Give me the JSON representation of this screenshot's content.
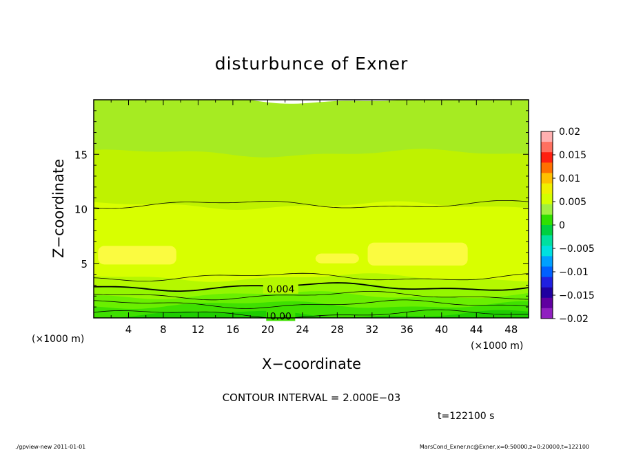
{
  "chart_data": {
    "type": "heatmap",
    "title": "disturbunce of Exner",
    "xlabel": "X−coordinate",
    "ylabel": "Z−coordinate",
    "x_unit_left": "(×1000 m)",
    "x_unit_right": "(×1000 m)",
    "xlim": [
      0,
      50
    ],
    "ylim": [
      0,
      20
    ],
    "x_ticks": [
      "4",
      "8",
      "12",
      "16",
      "20",
      "24",
      "28",
      "32",
      "36",
      "40",
      "44",
      "48"
    ],
    "x_tick_values": [
      4,
      8,
      12,
      16,
      20,
      24,
      28,
      32,
      36,
      40,
      44,
      48
    ],
    "y_ticks": [
      "5",
      "10",
      "15"
    ],
    "y_tick_values": [
      5,
      10,
      15
    ],
    "contour_labels": [
      "0.004",
      "0.00"
    ],
    "colorbar": {
      "ticks": [
        "0.02",
        "0.015",
        "0.01",
        "0.005",
        "0",
        "−0.005",
        "−0.01",
        "−0.015",
        "−0.02"
      ],
      "tick_values": [
        0.02,
        0.015,
        0.01,
        0.005,
        0,
        -0.005,
        -0.01,
        -0.015,
        -0.02
      ],
      "colors": [
        "#ffb0b0",
        "#ff7060",
        "#ff2010",
        "#ff7000",
        "#ffc000",
        "#f0f000",
        "#d4ff00",
        "#a0f040",
        "#30e000",
        "#00d040",
        "#00e0a0",
        "#00e0e0",
        "#00a0ff",
        "#0060ff",
        "#2020e0",
        "#2000a0",
        "#6000a0",
        "#9020c0"
      ]
    },
    "levels": [
      {
        "z_top": 0.35,
        "color": "#1ecd00",
        "value": -0.001
      },
      {
        "z_top": 1.2,
        "color": "#3fe000",
        "value": 0.0
      },
      {
        "z_top": 2.1,
        "color": "#6aef00",
        "value": 0.001
      },
      {
        "z_top": 2.9,
        "color": "#94f600",
        "value": 0.002
      },
      {
        "z_top": 3.7,
        "color": "#b5f800",
        "value": 0.003
      },
      {
        "z_top": 10.3,
        "color": "#d8ff00",
        "value": 0.004
      },
      {
        "z_top": 15.1,
        "color": "#bff200",
        "value": 0.005
      },
      {
        "z_top": 20,
        "color": "#a6eb22",
        "value": 0.006
      }
    ],
    "highlights": [
      {
        "x_range": [
          0.5,
          9.5
        ],
        "z_range": [
          4.9,
          6.6
        ],
        "color": "#fbfb40"
      },
      {
        "x_range": [
          31.5,
          43
        ],
        "z_range": [
          4.8,
          6.9
        ],
        "color": "#fbfb40"
      },
      {
        "x_range": [
          25.5,
          30.5
        ],
        "z_range": [
          5.0,
          5.9
        ],
        "color": "#fbfb40"
      }
    ],
    "contour_lines": [
      {
        "z": 0.35,
        "style": "thin"
      },
      {
        "z": 1.25,
        "style": "thin"
      },
      {
        "z": 2.05,
        "style": "thin"
      },
      {
        "z": 2.85,
        "style": "thick"
      },
      {
        "z": 3.75,
        "style": "thin"
      },
      {
        "z": 10.4,
        "style": "thin"
      }
    ],
    "interval_text": "CONTOUR INTERVAL = 2.000E−03",
    "time_text": "t=122100 s"
  },
  "footer": {
    "left": "./gpview-new  2011-01-01",
    "right": "MarsCond_Exner.nc@Exner,x=0:50000,z=0:20000,t=122100"
  }
}
